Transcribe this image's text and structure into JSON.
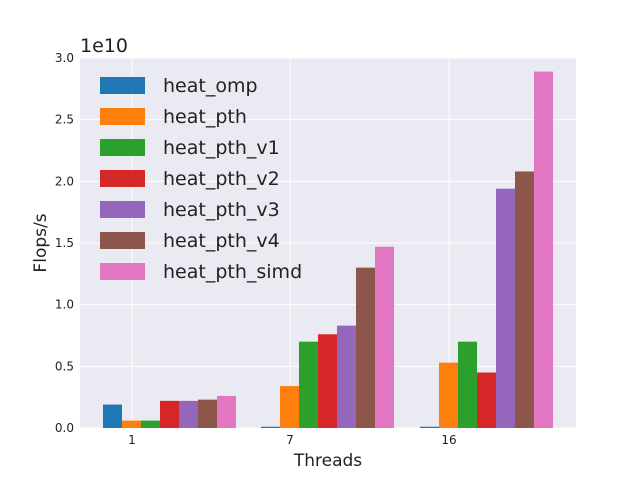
{
  "chart_data": {
    "type": "bar",
    "title": "",
    "xlabel": "Threads",
    "ylabel": "Flops/s",
    "y_offset_label": "1e10",
    "y_scale": 10000000000.0,
    "ylim": [
      0,
      3.0
    ],
    "y_ticks": [
      "0.0",
      "0.5",
      "1.0",
      "1.5",
      "2.0",
      "2.5",
      "3.0"
    ],
    "categories": [
      "1",
      "7",
      "16"
    ],
    "grid": true,
    "legend_position": "top-left",
    "series": [
      {
        "name": "heat_omp",
        "color": "#1f77b4",
        "values": [
          0.19,
          0.01,
          0.01
        ]
      },
      {
        "name": "heat_pth",
        "color": "#ff7f0e",
        "values": [
          0.06,
          0.34,
          0.53
        ]
      },
      {
        "name": "heat_pth_v1",
        "color": "#2ca02c",
        "values": [
          0.06,
          0.7,
          0.7
        ]
      },
      {
        "name": "heat_pth_v2",
        "color": "#d62728",
        "values": [
          0.22,
          0.76,
          0.45
        ]
      },
      {
        "name": "heat_pth_v3",
        "color": "#9467bd",
        "values": [
          0.22,
          0.83,
          1.94
        ]
      },
      {
        "name": "heat_pth_v4",
        "color": "#8c564b",
        "values": [
          0.23,
          1.3,
          2.08
        ]
      },
      {
        "name": "heat_pth_simd",
        "color": "#e377c2",
        "values": [
          0.26,
          1.47,
          2.89
        ]
      }
    ]
  }
}
